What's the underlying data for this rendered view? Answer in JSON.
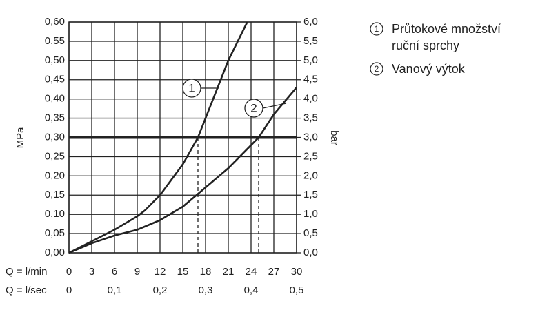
{
  "chart_data": {
    "type": "line",
    "xlabel": "Q = l/min",
    "x2label": "Q = l/sec",
    "ylabel": "MPa",
    "y2label": "bar",
    "xlim": [
      0,
      30
    ],
    "xticks": [
      0,
      3,
      6,
      9,
      12,
      15,
      18,
      21,
      24,
      27,
      30
    ],
    "x2lim": [
      0,
      0.5
    ],
    "x2ticks": [
      0,
      {
        "value": 0.1,
        "label": "0,1"
      },
      {
        "value": 0.2,
        "label": "0,2"
      },
      {
        "value": 0.3,
        "label": "0,3"
      },
      {
        "value": 0.4,
        "label": "0,4"
      },
      {
        "value": 0.5,
        "label": "0,5"
      }
    ],
    "ylim": [
      0,
      0.6
    ],
    "yticks": [
      {
        "value": 0,
        "label": "0,00"
      },
      {
        "value": 0.05,
        "label": "0,05"
      },
      {
        "value": 0.1,
        "label": "0,10"
      },
      {
        "value": 0.15,
        "label": "0,15"
      },
      {
        "value": 0.2,
        "label": "0,20"
      },
      {
        "value": 0.25,
        "label": "0,25"
      },
      {
        "value": 0.3,
        "label": "0,30"
      },
      {
        "value": 0.35,
        "label": "0,35"
      },
      {
        "value": 0.4,
        "label": "0,40"
      },
      {
        "value": 0.45,
        "label": "0,45"
      },
      {
        "value": 0.5,
        "label": "0,50"
      },
      {
        "value": 0.55,
        "label": "0,55"
      },
      {
        "value": 0.6,
        "label": "0,60"
      }
    ],
    "y2lim": [
      0,
      6
    ],
    "y2ticks": [
      {
        "value": 0,
        "label": "0,0"
      },
      {
        "value": 0.5,
        "label": "0,5"
      },
      {
        "value": 1,
        "label": "1,0"
      },
      {
        "value": 1.5,
        "label": "1,5"
      },
      {
        "value": 2,
        "label": "2,0"
      },
      {
        "value": 2.5,
        "label": "2,5"
      },
      {
        "value": 3,
        "label": "3,0"
      },
      {
        "value": 3.5,
        "label": "3,5"
      },
      {
        "value": 4,
        "label": "4,0"
      },
      {
        "value": 4.5,
        "label": "4,5"
      },
      {
        "value": 5,
        "label": "5,0"
      },
      {
        "value": 5.5,
        "label": "5,5"
      },
      {
        "value": 6,
        "label": "6,0"
      }
    ],
    "grid": true,
    "reference_line": 0.3,
    "drop_lines": [
      17,
      25
    ],
    "series": [
      {
        "name": "Průtokové množství ruční sprchy",
        "label": "1",
        "color": "#222222",
        "x": [
          0,
          3,
          6,
          9,
          10,
          12,
          15,
          17,
          19,
          21,
          23.5
        ],
        "values": [
          0,
          0.03,
          0.06,
          0.095,
          0.11,
          0.15,
          0.23,
          0.3,
          0.4,
          0.5,
          0.6
        ]
      },
      {
        "name": "Vanový výtok",
        "label": "2",
        "color": "#222222",
        "x": [
          0,
          3,
          6,
          9,
          12,
          15,
          18,
          21,
          23,
          25,
          27,
          30
        ],
        "values": [
          0,
          0.025,
          0.045,
          0.06,
          0.085,
          0.12,
          0.17,
          0.22,
          0.26,
          0.3,
          0.36,
          0.43
        ]
      }
    ]
  }
}
